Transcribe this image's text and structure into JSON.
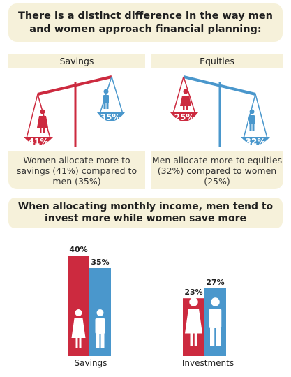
{
  "heading": "There is a distinct difference in the way men and women approach financial planning:",
  "colors": {
    "women": "#cc2a3f",
    "men": "#4a97cc",
    "panel": "#f6f1da"
  },
  "savings_panel": {
    "title": "Savings",
    "women_pct": "41%",
    "men_pct": "35%",
    "description": "Women allocate more to savings (41%) compared to men (35%)",
    "icons": [
      "woman-icon",
      "man-icon"
    ]
  },
  "equities_panel": {
    "title": "Equities",
    "women_pct": "25%",
    "men_pct": "32%",
    "description": "Men allocate more to equities (32%) compared to women (25%)",
    "icons": [
      "woman-icon",
      "man-icon"
    ]
  },
  "income_heading": "When allocating monthly income, men tend to invest more while women save more",
  "chart_data": {
    "type": "bar",
    "categories": [
      "Savings",
      "Investments"
    ],
    "series": [
      {
        "values": [
          40,
          23
        ]
      },
      {
        "values": [
          35,
          27
        ]
      }
    ],
    "data_labels": [
      [
        "40%",
        "23%"
      ],
      [
        "35%",
        "27%"
      ]
    ]
  }
}
